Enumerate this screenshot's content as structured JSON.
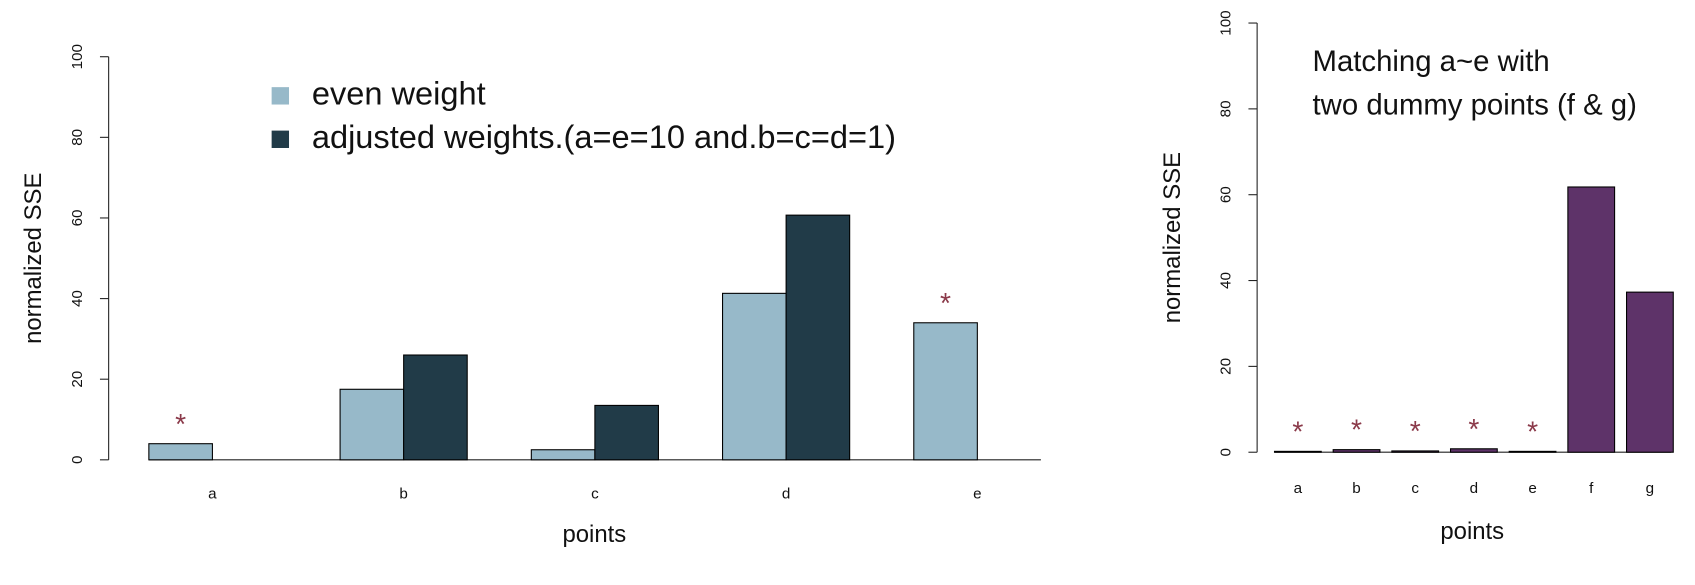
{
  "chart_data": [
    {
      "type": "bar",
      "categories": [
        "a",
        "b",
        "c",
        "d",
        "e"
      ],
      "series": [
        {
          "name": "even weight",
          "color": "#97b9c9",
          "values": [
            4,
            17.5,
            2.5,
            41.3,
            34
          ]
        },
        {
          "name": "adjusted weights.(a=e=10 and.b=c=d=1)",
          "color": "#213b48",
          "values": [
            0,
            26,
            13.5,
            60.7,
            0
          ]
        }
      ],
      "ylim": [
        0,
        100
      ],
      "yticks": [
        0,
        20,
        40,
        60,
        80,
        100
      ],
      "ylabel": "normalized SSE",
      "xlabel": "points",
      "annotations": [
        {
          "text": "*",
          "category": "a"
        },
        {
          "text": "*",
          "category": "e"
        }
      ]
    },
    {
      "type": "bar",
      "categories": [
        "a",
        "b",
        "c",
        "d",
        "e",
        "f",
        "g"
      ],
      "values": [
        0.2,
        0.6,
        0.3,
        0.8,
        0.2,
        61.8,
        37.3
      ],
      "color": "#5e3369",
      "ylim": [
        0,
        100
      ],
      "yticks": [
        0,
        20,
        40,
        60,
        80,
        100
      ],
      "ylabel": "normalized SSE",
      "xlabel": "points",
      "note": [
        "Matching a~e with",
        "two dummy points (f & g)"
      ],
      "annotations": [
        {
          "text": "*",
          "category": "a"
        },
        {
          "text": "*",
          "category": "b"
        },
        {
          "text": "*",
          "category": "c"
        },
        {
          "text": "*",
          "category": "d"
        },
        {
          "text": "*",
          "category": "e"
        }
      ]
    }
  ]
}
